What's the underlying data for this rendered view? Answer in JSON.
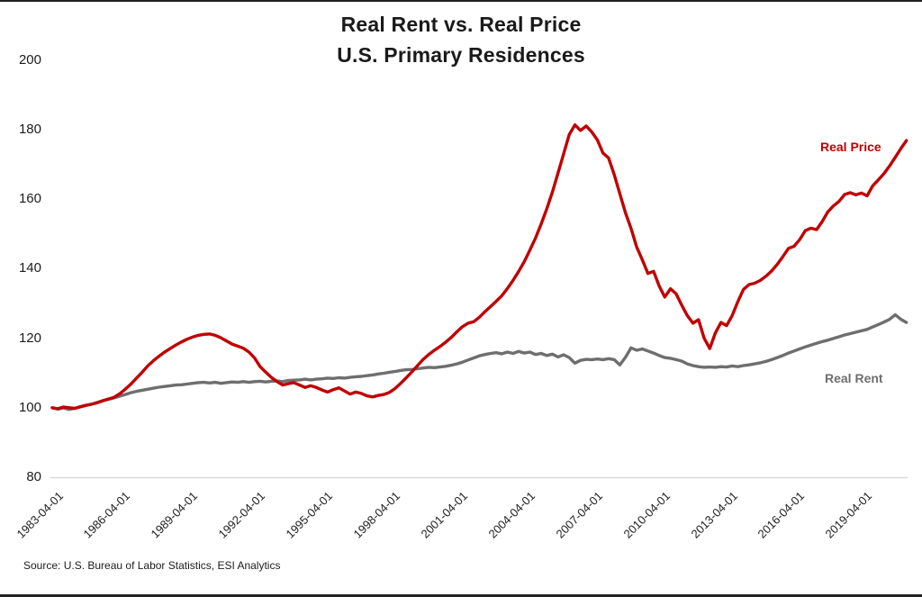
{
  "title": {
    "line1": "Real Rent vs. Real Price",
    "line2": "U.S. Primary Residences"
  },
  "source_note": "Source: U.S. Bureau of Labor Statistics, ESI Analytics",
  "series_labels": {
    "price": "Real Price",
    "rent": "Real Rent"
  },
  "colors": {
    "price_line": "#c00000",
    "rent_line": "#6e6e6e",
    "axis_text": "#1c1c1c",
    "baseline_grid": "#d9d9d9",
    "edge_bars": "#222222"
  },
  "chart_data": {
    "type": "line",
    "title": "Real Rent vs. Real Price — U.S. Primary Residences",
    "frequency": "quarterly",
    "x_start": "1983-04-01",
    "x_end": "2021-04-01",
    "ylim": [
      80,
      200
    ],
    "y_ticks": [
      80,
      100,
      120,
      140,
      160,
      180,
      200
    ],
    "x_tick_labels": [
      "1983-04-01",
      "1986-04-01",
      "1989-04-01",
      "1992-04-01",
      "1995-04-01",
      "1998-04-01",
      "2001-04-01",
      "2004-04-01",
      "2007-04-01",
      "2010-04-01",
      "2013-04-01",
      "2016-04-01",
      "2019-04-01"
    ],
    "x_tick_step_points": 12,
    "grid": "horizontal baseline at y=80 only",
    "legend_position": "inline end-of-line labels",
    "series": [
      {
        "name": "Real Price",
        "color": "#c00000",
        "values": [
          100.0,
          99.7,
          100.2,
          100.0,
          99.8,
          100.3,
          100.7,
          101.0,
          101.4,
          102.0,
          102.5,
          103.0,
          104.0,
          105.3,
          106.8,
          108.5,
          110.2,
          112.0,
          113.5,
          114.8,
          116.0,
          117.0,
          118.0,
          118.9,
          119.7,
          120.3,
          120.8,
          121.1,
          121.2,
          120.8,
          120.1,
          119.2,
          118.3,
          117.7,
          117.1,
          116.0,
          114.3,
          111.8,
          110.2,
          108.7,
          107.5,
          106.5,
          106.9,
          107.2,
          106.5,
          105.8,
          106.3,
          105.8,
          105.1,
          104.5,
          105.2,
          105.7,
          104.8,
          103.9,
          104.5,
          104.1,
          103.4,
          103.1,
          103.5,
          103.8,
          104.4,
          105.5,
          107.0,
          108.6,
          110.3,
          112.1,
          113.9,
          115.3,
          116.5,
          117.6,
          118.8,
          120.2,
          121.8,
          123.3,
          124.3,
          124.7,
          126.0,
          127.6,
          129.1,
          130.6,
          132.2,
          134.3,
          136.6,
          139.2,
          142.0,
          145.3,
          148.8,
          152.8,
          157.2,
          162.0,
          167.5,
          173.0,
          178.5,
          181.3,
          179.7,
          181.0,
          179.3,
          177.0,
          173.2,
          171.8,
          167.0,
          161.5,
          156.0,
          151.5,
          146.2,
          142.5,
          138.6,
          139.2,
          135.0,
          131.8,
          134.2,
          132.8,
          129.5,
          126.5,
          124.3,
          125.3,
          120.0,
          117.0,
          121.5,
          124.5,
          123.6,
          126.5,
          130.5,
          134.0,
          135.4,
          135.8,
          136.6,
          137.8,
          139.3,
          141.2,
          143.4,
          145.8,
          146.4,
          148.3,
          150.9,
          151.6,
          151.2,
          153.5,
          156.3,
          158.0,
          159.3,
          161.3,
          161.8,
          161.2,
          161.7,
          160.9,
          163.8,
          165.5,
          167.3,
          169.5,
          172.0,
          174.5,
          176.8
        ]
      },
      {
        "name": "Real Rent",
        "color": "#6e6e6e",
        "values": [
          100.0,
          99.6,
          99.9,
          99.5,
          99.8,
          100.2,
          100.6,
          101.0,
          101.5,
          102.0,
          102.4,
          102.8,
          103.3,
          103.8,
          104.3,
          104.7,
          105.0,
          105.3,
          105.6,
          105.9,
          106.1,
          106.3,
          106.5,
          106.6,
          106.8,
          107.0,
          107.2,
          107.3,
          107.1,
          107.3,
          107.0,
          107.2,
          107.4,
          107.3,
          107.5,
          107.3,
          107.5,
          107.6,
          107.4,
          107.6,
          107.7,
          107.5,
          107.8,
          107.9,
          108.0,
          108.2,
          108.0,
          108.2,
          108.3,
          108.5,
          108.4,
          108.6,
          108.5,
          108.7,
          108.9,
          109.0,
          109.2,
          109.4,
          109.7,
          109.9,
          110.2,
          110.4,
          110.7,
          110.9,
          111.0,
          111.2,
          111.4,
          111.6,
          111.5,
          111.7,
          111.9,
          112.2,
          112.6,
          113.1,
          113.7,
          114.3,
          114.9,
          115.3,
          115.6,
          115.8,
          115.5,
          116.0,
          115.6,
          116.2,
          115.7,
          116.0,
          115.3,
          115.6,
          115.0,
          115.4,
          114.6,
          115.2,
          114.4,
          112.8,
          113.6,
          113.9,
          113.8,
          114.0,
          113.8,
          114.1,
          113.8,
          112.3,
          114.5,
          117.2,
          116.5,
          116.9,
          116.3,
          115.7,
          115.0,
          114.4,
          114.2,
          113.8,
          113.4,
          112.6,
          112.1,
          111.8,
          111.6,
          111.7,
          111.6,
          111.8,
          111.7,
          112.0,
          111.8,
          112.1,
          112.3,
          112.6,
          112.9,
          113.3,
          113.8,
          114.4,
          115.0,
          115.7,
          116.3,
          116.9,
          117.5,
          118.0,
          118.5,
          119.0,
          119.4,
          119.9,
          120.4,
          120.9,
          121.3,
          121.7,
          122.1,
          122.5,
          123.2,
          123.9,
          124.6,
          125.4,
          126.7,
          125.4,
          124.5
        ]
      }
    ]
  }
}
